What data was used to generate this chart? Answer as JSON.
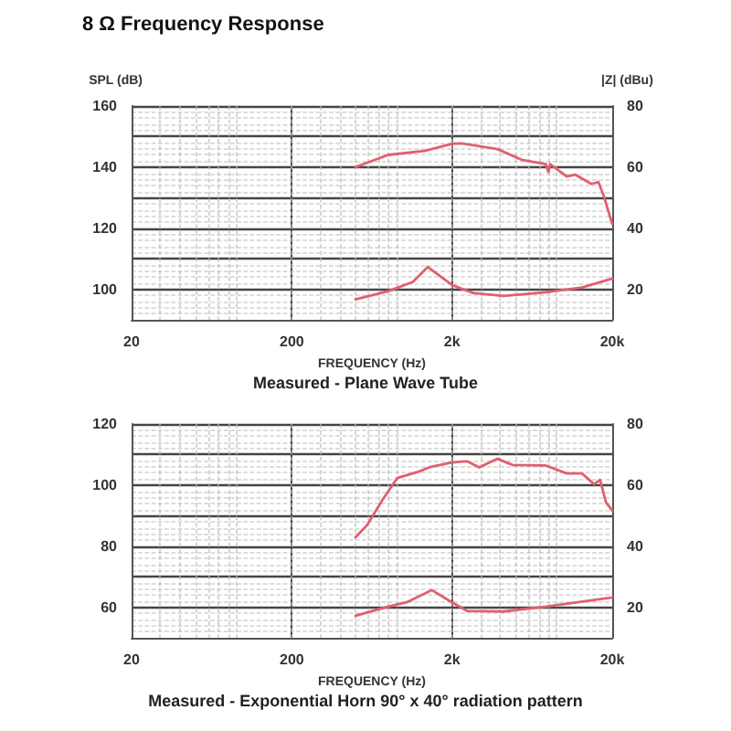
{
  "chart_data": [
    {
      "type": "line",
      "title": "8 Ω Frequency Response",
      "xlabel": "FREQUENCY (Hz)",
      "ylabel": "SPL (dB)",
      "y2label": "|Z| (dBu)",
      "annotations": [
        "Measured - Plane Wave Tube"
      ],
      "log": "x",
      "grid": true,
      "marker": "none",
      "line_style": "solid",
      "xlim": [
        20,
        20000
      ],
      "xticks": [
        {
          "value": 20,
          "label": "20"
        },
        {
          "value": 200,
          "label": "200"
        },
        {
          "value": 2000,
          "label": "2k"
        },
        {
          "value": 20000,
          "label": "20k"
        }
      ],
      "ylim": [
        90,
        160
      ],
      "yticks": [
        100,
        {
          "value": 110,
          "label": null
        },
        120,
        {
          "value": 130,
          "label": null
        },
        140,
        {
          "value": 150,
          "label": null
        },
        160
      ],
      "y2lim": [
        10,
        80
      ],
      "y2ticks": [
        20,
        {
          "value": 30,
          "label": null
        },
        40,
        {
          "value": 50,
          "label": null
        },
        60,
        {
          "value": 70,
          "label": null
        },
        80
      ],
      "series": [
        {
          "color": "#e0606e",
          "x": [
            500,
            800,
            1350,
            2000,
            2280,
            3840,
            5430,
            7700,
            8000,
            8200,
            10400,
            11800,
            14800,
            16400,
            17700,
            20000
          ],
          "values": [
            140,
            144,
            145.3,
            147.6,
            147.8,
            145.9,
            142.4,
            141,
            138.4,
            141,
            136.9,
            137.5,
            134.5,
            135.1,
            130.6,
            121.4
          ]
        },
        {
          "color": "#e0606e",
          "axis": "y2",
          "x": [
            500,
            800,
            1140,
            1410,
            2000,
            2710,
            4190,
            7700,
            12950,
            20000
          ],
          "values": [
            16.7,
            19.4,
            22.4,
            27.3,
            21.4,
            18.8,
            17.8,
            19,
            20.6,
            23.5
          ]
        }
      ]
    },
    {
      "type": "line",
      "xlabel": "FREQUENCY (Hz)",
      "annotations": [
        "Measured - Exponential Horn 90° x 40° radiation pattern"
      ],
      "log": "x",
      "grid": true,
      "marker": "none",
      "line_style": "solid",
      "xlim": [
        20,
        20000
      ],
      "xticks": [
        {
          "value": 20,
          "label": "20"
        },
        {
          "value": 200,
          "label": "200"
        },
        {
          "value": 2000,
          "label": "2k"
        },
        {
          "value": 20000,
          "label": "20k"
        }
      ],
      "ylim": [
        50,
        120
      ],
      "yticks": [
        60,
        {
          "value": 70,
          "label": null
        },
        80,
        {
          "value": 90,
          "label": null
        },
        100,
        {
          "value": 110,
          "label": null
        },
        120
      ],
      "y2lim": [
        10,
        80
      ],
      "y2ticks": [
        20,
        {
          "value": 30,
          "label": null
        },
        40,
        {
          "value": 50,
          "label": null
        },
        60,
        {
          "value": 70,
          "label": null
        },
        80
      ],
      "series": [
        {
          "color": "#e0606e",
          "x": [
            500,
            590,
            740,
            910,
            1240,
            1480,
            2000,
            2480,
            2960,
            3840,
            4770,
            7700,
            10400,
            12950,
            15400,
            16800,
            18300,
            20000
          ],
          "values": [
            82.9,
            86.9,
            95.3,
            102.3,
            104.4,
            106,
            107.4,
            107.8,
            105.8,
            108.6,
            106.6,
            106.4,
            103.8,
            103.8,
            100.3,
            101.7,
            94.3,
            91.7
          ]
        },
        {
          "color": "#e0606e",
          "axis": "y2",
          "x": [
            500,
            800,
            1040,
            1500,
            2000,
            2480,
            4190,
            7700,
            20000
          ],
          "values": [
            17.2,
            20.2,
            21.6,
            25.6,
            21.6,
            18.8,
            18.6,
            20.2,
            23.2
          ]
        }
      ]
    }
  ]
}
